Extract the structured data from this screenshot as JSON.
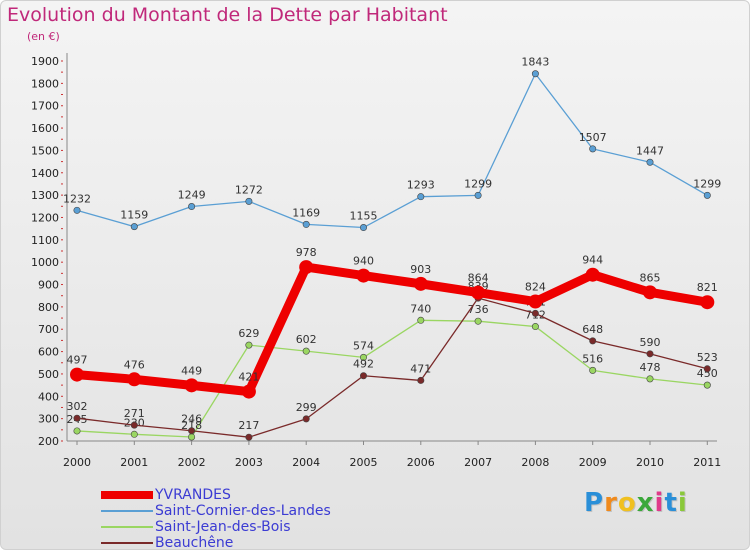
{
  "title": "Evolution du Montant de la Dette par Habitant",
  "unit_label": "(en €)",
  "brand": "Proxiti",
  "chart_data": {
    "type": "line",
    "title": "Evolution du Montant de la Dette par Habitant",
    "subtitle": "(en €)",
    "x": [
      "2000",
      "2001",
      "2002",
      "2003",
      "2004",
      "2005",
      "2006",
      "2007",
      "2008",
      "2009",
      "2010",
      "2011"
    ],
    "ylim": [
      200,
      1900
    ],
    "yticks": [
      200,
      300,
      400,
      500,
      600,
      700,
      800,
      900,
      1000,
      1100,
      1200,
      1300,
      1400,
      1500,
      1600,
      1700,
      1800,
      1900
    ],
    "grid": false,
    "legend_position": "bottom-left",
    "series": [
      {
        "name": "Saint-Cornier-des-Landes",
        "color": "#5a9fd4",
        "values": [
          1232,
          1159,
          1249,
          1272,
          1169,
          1155,
          1293,
          1299,
          1843,
          1507,
          1447,
          1299
        ]
      },
      {
        "name": "Saint-Jean-des-Bois",
        "color": "#9ad662",
        "values": [
          245,
          230,
          218,
          629,
          602,
          574,
          740,
          736,
          712,
          516,
          478,
          450
        ]
      },
      {
        "name": "Beauchêne",
        "color": "#7a2a2a",
        "values": [
          302,
          271,
          246,
          217,
          299,
          492,
          471,
          839,
          771,
          648,
          590,
          523
        ]
      },
      {
        "name": "YVRANDES",
        "color": "#ee0000",
        "values": [
          497,
          476,
          449,
          421,
          978,
          940,
          903,
          864,
          824,
          944,
          865,
          821
        ]
      }
    ]
  }
}
